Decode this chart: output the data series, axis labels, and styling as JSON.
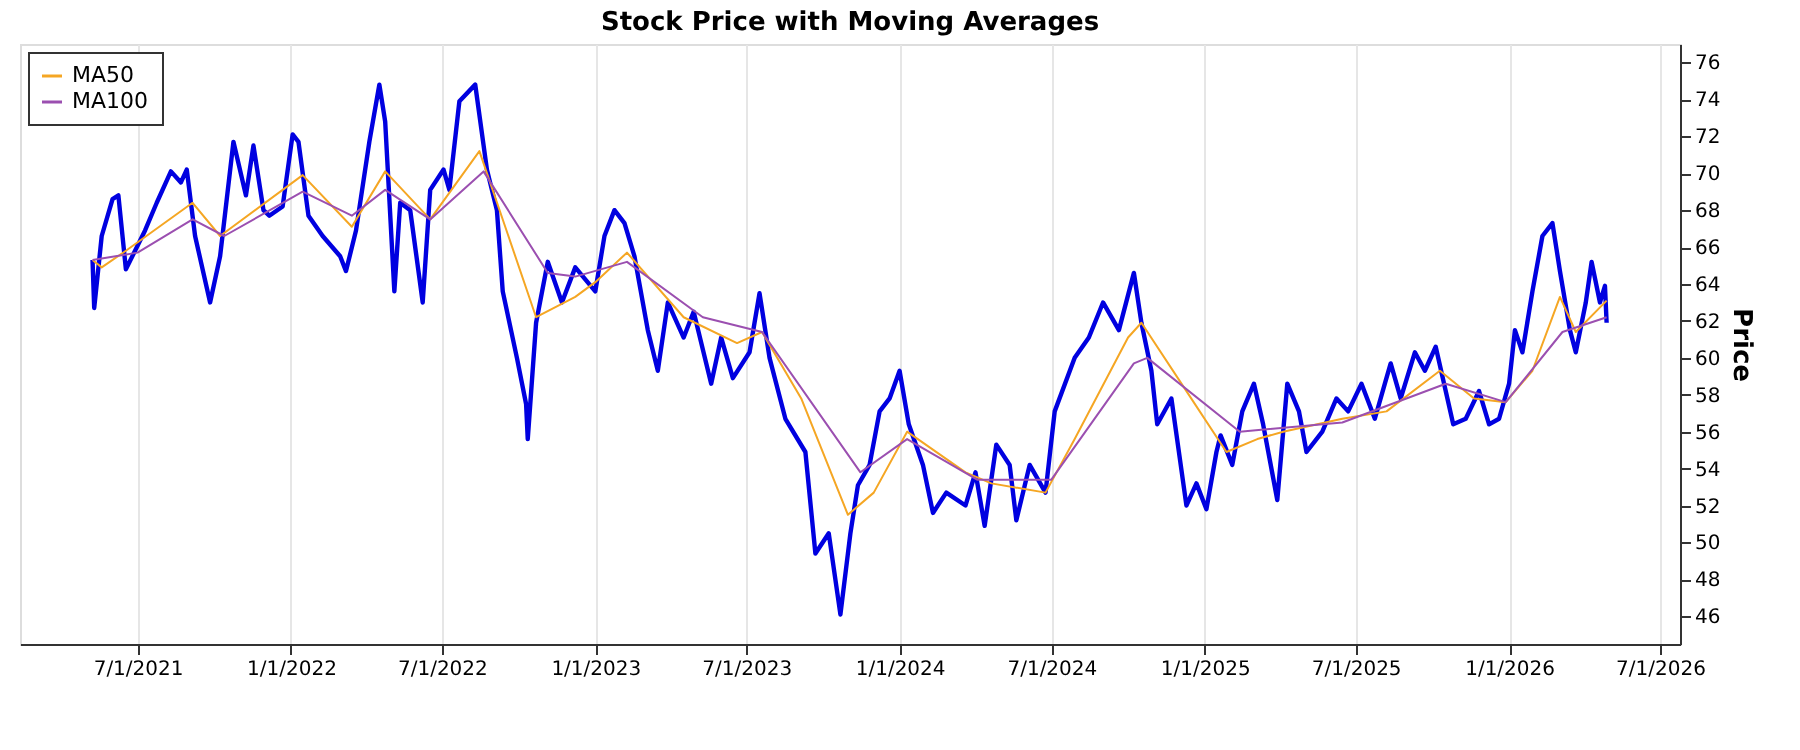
{
  "chart_data": {
    "type": "line",
    "title": "Stock Price with Moving Averages",
    "ylabel": "Price",
    "xlim": [
      "2021-02-10",
      "2026-07-25"
    ],
    "ylim": [
      44.5,
      77
    ],
    "xticks": [
      {
        "value": "2021-07-01",
        "label": "7/1/2021"
      },
      {
        "value": "2022-01-01",
        "label": "1/1/2022"
      },
      {
        "value": "2022-07-01",
        "label": "7/1/2022"
      },
      {
        "value": "2023-01-01",
        "label": "1/1/2023"
      },
      {
        "value": "2023-07-01",
        "label": "7/1/2023"
      },
      {
        "value": "2024-01-01",
        "label": "1/1/2024"
      },
      {
        "value": "2024-07-01",
        "label": "7/1/2024"
      },
      {
        "value": "2025-01-01",
        "label": "1/1/2025"
      },
      {
        "value": "2025-07-01",
        "label": "7/1/2025"
      },
      {
        "value": "2026-01-01",
        "label": "1/1/2026"
      },
      {
        "value": "2026-07-01",
        "label": "7/1/2026"
      }
    ],
    "yticks": [
      46,
      48,
      50,
      52,
      54,
      56,
      58,
      60,
      62,
      64,
      66,
      68,
      70,
      72,
      74,
      76
    ],
    "grid": "x",
    "legend": "top left",
    "marker": "none",
    "line_style": "solid",
    "series": [
      {
        "color": "#0000e0",
        "x": [
          "2021-05-08",
          "2021-05-10",
          "2021-05-19",
          "2021-06-01",
          "2021-06-08",
          "2021-06-17",
          "2021-06-28",
          "2021-07-10",
          "2021-07-24",
          "2021-08-10",
          "2021-08-22",
          "2021-08-29",
          "2021-09-08",
          "2021-09-26",
          "2021-10-08",
          "2021-10-24",
          "2021-11-08",
          "2021-11-17",
          "2021-11-29",
          "2021-12-06",
          "2021-12-22",
          "2022-01-03",
          "2022-01-10",
          "2022-01-22",
          "2022-02-08",
          "2022-03-01",
          "2022-03-08",
          "2022-03-20",
          "2022-04-05",
          "2022-04-17",
          "2022-04-24",
          "2022-05-05",
          "2022-05-12",
          "2022-05-24",
          "2022-06-08",
          "2022-06-17",
          "2022-07-03",
          "2022-07-10",
          "2022-07-22",
          "2022-08-10",
          "2022-08-24",
          "2022-09-05",
          "2022-09-12",
          "2022-09-29",
          "2022-10-10",
          "2022-10-12",
          "2022-10-22",
          "2022-11-05",
          "2022-11-22",
          "2022-12-08",
          "2023-01-01",
          "2023-01-12",
          "2023-01-24",
          "2023-02-05",
          "2023-02-17",
          "2023-03-05",
          "2023-03-17",
          "2023-03-29",
          "2023-04-17",
          "2023-04-29",
          "2023-05-20",
          "2023-06-01",
          "2023-06-15",
          "2023-07-05",
          "2023-07-17",
          "2023-07-29",
          "2023-08-17",
          "2023-09-10",
          "2023-09-22",
          "2023-10-08",
          "2023-10-22",
          "2023-11-03",
          "2023-11-12",
          "2023-11-26",
          "2023-12-08",
          "2023-12-20",
          "2024-01-01",
          "2024-01-12",
          "2024-01-29",
          "2024-02-10",
          "2024-02-26",
          "2024-03-20",
          "2024-04-01",
          "2024-04-12",
          "2024-04-26",
          "2024-05-12",
          "2024-05-20",
          "2024-06-05",
          "2024-06-24",
          "2024-07-05",
          "2024-07-29",
          "2024-08-15",
          "2024-09-01",
          "2024-09-20",
          "2024-10-08",
          "2024-10-17",
          "2024-10-29",
          "2024-11-05",
          "2024-11-22",
          "2024-12-10",
          "2024-12-22",
          "2025-01-03",
          "2025-01-15",
          "2025-01-20",
          "2025-02-03",
          "2025-02-15",
          "2025-03-01",
          "2025-03-12",
          "2025-03-29",
          "2025-04-10",
          "2025-04-24",
          "2025-05-03",
          "2025-05-22",
          "2025-06-08",
          "2025-06-22",
          "2025-07-08",
          "2025-07-24",
          "2025-08-05",
          "2025-08-12",
          "2025-08-24",
          "2025-09-10",
          "2025-09-22",
          "2025-10-05",
          "2025-10-17",
          "2025-10-26",
          "2025-11-10",
          "2025-11-26",
          "2025-12-08",
          "2025-12-20",
          "2026-01-01",
          "2026-01-08",
          "2026-01-17",
          "2026-01-29",
          "2026-02-10",
          "2026-02-22",
          "2026-03-03",
          "2026-03-15",
          "2026-03-22",
          "2026-04-03",
          "2026-04-10",
          "2026-04-20",
          "2026-04-26",
          "2026-04-28"
        ],
        "values": [
          65.3,
          62.7,
          66.6,
          68.6,
          68.8,
          64.8,
          65.8,
          66.9,
          68.4,
          70.1,
          69.5,
          70.2,
          66.6,
          63.0,
          65.5,
          71.7,
          68.8,
          71.5,
          68.0,
          67.7,
          68.2,
          72.1,
          71.7,
          67.7,
          66.6,
          65.5,
          64.7,
          66.9,
          71.7,
          74.8,
          72.8,
          63.6,
          68.4,
          68.0,
          63.0,
          69.1,
          70.2,
          69.1,
          73.9,
          74.8,
          70.2,
          68.0,
          63.6,
          60.0,
          57.5,
          55.6,
          61.9,
          65.2,
          63.0,
          64.9,
          63.6,
          66.6,
          68.0,
          67.3,
          65.5,
          61.5,
          59.3,
          63.0,
          61.1,
          62.5,
          58.6,
          61.1,
          58.9,
          60.3,
          63.5,
          60.0,
          56.7,
          54.9,
          49.4,
          50.5,
          46.1,
          50.5,
          53.1,
          54.2,
          57.1,
          57.8,
          59.3,
          56.4,
          54.2,
          51.6,
          52.7,
          52.0,
          53.8,
          50.9,
          55.3,
          54.2,
          51.2,
          54.2,
          52.7,
          57.1,
          60.0,
          61.1,
          63.0,
          61.5,
          64.6,
          61.9,
          59.3,
          56.4,
          57.8,
          52.0,
          53.2,
          51.8,
          54.9,
          55.8,
          54.2,
          57.1,
          58.6,
          56.4,
          52.3,
          58.6,
          57.1,
          54.9,
          56.0,
          57.8,
          57.1,
          58.6,
          56.7,
          58.6,
          59.7,
          57.8,
          60.3,
          59.3,
          60.6,
          58.2,
          56.4,
          56.7,
          58.2,
          56.4,
          56.7,
          58.6,
          61.5,
          60.3,
          63.6,
          66.6,
          67.3,
          64.7,
          61.5,
          60.3,
          63.0,
          65.2,
          63.0,
          63.9,
          61.9
        ]
      },
      {
        "name": "MA50",
        "color": "#f5a623",
        "x": [
          "2021-05-08",
          "2021-05-19",
          "2021-06-17",
          "2021-09-05",
          "2021-10-08",
          "2022-01-15",
          "2022-03-15",
          "2022-04-24",
          "2022-06-17",
          "2022-08-15",
          "2022-10-22",
          "2022-12-08",
          "2023-01-01",
          "2023-02-08",
          "2023-04-17",
          "2023-06-20",
          "2023-07-20",
          "2023-09-05",
          "2023-10-31",
          "2023-12-01",
          "2024-01-10",
          "2024-03-20",
          "2024-04-20",
          "2024-06-24",
          "2024-07-29",
          "2024-10-01",
          "2024-10-17",
          "2024-12-10",
          "2025-01-27",
          "2025-03-05",
          "2025-04-05",
          "2025-06-15",
          "2025-08-07",
          "2025-10-10",
          "2025-11-20",
          "2025-12-28",
          "2026-01-29",
          "2026-03-03",
          "2026-03-22",
          "2026-04-28"
        ],
        "values": [
          65.3,
          64.9,
          65.8,
          68.4,
          66.6,
          69.9,
          67.1,
          70.1,
          67.5,
          71.2,
          62.2,
          63.3,
          64.1,
          65.7,
          62.2,
          60.8,
          61.4,
          57.8,
          51.5,
          52.7,
          56.0,
          53.8,
          53.2,
          52.7,
          55.6,
          61.1,
          61.9,
          58.2,
          54.9,
          55.6,
          56.0,
          56.7,
          57.1,
          59.3,
          57.8,
          57.6,
          59.3,
          63.3,
          61.4,
          63.1
        ]
      },
      {
        "name": "MA100",
        "color": "#9b4fb0",
        "x": [
          "2021-05-08",
          "2021-07-01",
          "2021-09-05",
          "2021-10-13",
          "2022-01-15",
          "2022-03-15",
          "2022-04-24",
          "2022-06-17",
          "2022-08-20",
          "2022-11-05",
          "2022-12-08",
          "2023-02-08",
          "2023-05-10",
          "2023-07-20",
          "2023-11-15",
          "2024-01-10",
          "2024-04-03",
          "2024-07-01",
          "2024-10-08",
          "2024-10-24",
          "2025-02-12",
          "2025-06-15",
          "2025-10-17",
          "2025-12-28",
          "2026-03-06",
          "2026-04-28"
        ],
        "values": [
          65.3,
          65.7,
          67.5,
          66.6,
          69.0,
          67.7,
          69.1,
          67.5,
          70.1,
          64.6,
          64.4,
          65.2,
          62.2,
          61.4,
          53.8,
          55.6,
          53.4,
          53.4,
          59.7,
          60.0,
          56.0,
          56.5,
          58.6,
          57.6,
          61.4,
          62.2
        ]
      }
    ]
  }
}
